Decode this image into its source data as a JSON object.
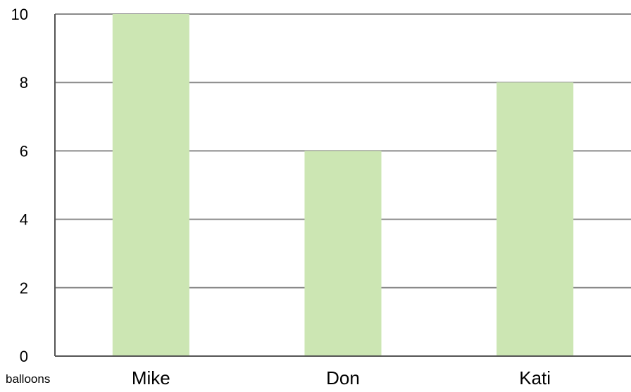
{
  "chart_data": {
    "type": "bar",
    "categories": [
      "Mike",
      "Don",
      "Kati"
    ],
    "values": [
      10,
      6,
      8
    ],
    "ylim": [
      0,
      10
    ],
    "yticks": [
      0,
      2,
      4,
      6,
      8,
      10
    ],
    "ylabel": "balloons",
    "grid": true,
    "bar_color": "#cce6b3",
    "grid_color": "#8a8a8a",
    "axis_color": "#555555"
  }
}
